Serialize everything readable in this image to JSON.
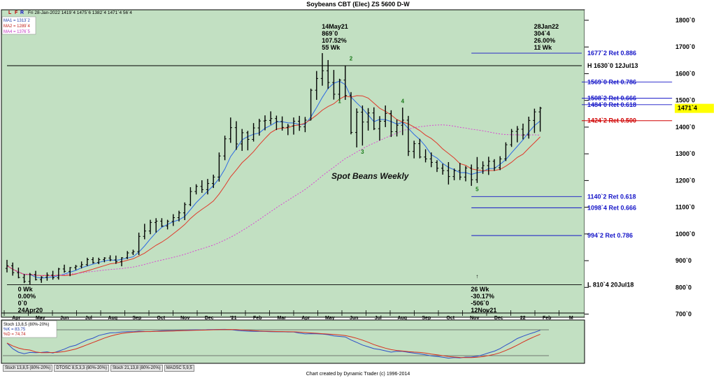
{
  "window": {
    "title": "Soybeans CBT (Elec) ZS 5600 D-W",
    "credit": "Chart created by Dynamic Trader  (c) 1996-2014"
  },
  "toolbar": {
    "flags": [
      "L",
      "F",
      "R"
    ],
    "ohlc_line": "Fri 28-Jan-2022   1419`4   1475`6   1382`4   1471`4   56`4"
  },
  "ma_legend": [
    "MA1 = 1313`2",
    "MA2 = 1289`4",
    "MA4 = 1376`5"
  ],
  "chart_data": {
    "type": "candlestick",
    "title": "Soybeans CBT (Elec) ZS 5600 D-W",
    "annotation_text": "Spot Beans Weekly",
    "y_ticks": [
      "1800`0",
      "1700`0",
      "1600`0",
      "1500`0",
      "1400`0",
      "1300`0",
      "1200`0",
      "1100`0",
      "1000`0",
      "900`0",
      "800`0",
      "700`0"
    ],
    "y_tick_values": [
      1800,
      1700,
      1600,
      1500,
      1400,
      1300,
      1200,
      1100,
      1000,
      900,
      800,
      700
    ],
    "ylim": [
      680,
      1830
    ],
    "x_labels": [
      "Apr",
      "May",
      "Jun",
      "Jul",
      "Aug",
      "Sep",
      "Oct",
      "Nov",
      "Dec",
      "'21",
      "Feb",
      "Mar",
      "Apr",
      "May",
      "Jun",
      "Jul",
      "Aug",
      "Sep",
      "Oct",
      "Nov",
      "Dec",
      "22",
      "Feb",
      "M"
    ],
    "last_price": "1471`4",
    "last_price_value": 1471.5,
    "levels": [
      {
        "label": "1677`2 Ret 0.886",
        "value": 1677,
        "color": "#1515c8",
        "start_week": 81
      },
      {
        "label": "H 1630`0 12Jul13",
        "value": 1630,
        "color": "#000000",
        "start_week": 0
      },
      {
        "label": "1569`0 Ret 0.786",
        "value": 1569,
        "color": "#1515c8",
        "start_week": 116
      },
      {
        "label": "1508`2 Ret 0.666",
        "value": 1508,
        "color": "#1515c8",
        "start_week": 116
      },
      {
        "label": "1484`0 Ret 0.618",
        "value": 1484,
        "color": "#1515c8",
        "start_week": 116
      },
      {
        "label": "1424`2 Ret 0.500",
        "value": 1424,
        "color": "#d00000",
        "start_week": 116
      },
      {
        "label": "1140`2 Ret 0.618",
        "value": 1140,
        "color": "#1515c8",
        "start_week": 81
      },
      {
        "label": "1098`4 Ret 0.666",
        "value": 1098,
        "color": "#1515c8",
        "start_week": 81
      },
      {
        "label": "994`2 Ret 0.786",
        "value": 994,
        "color": "#1515c8",
        "start_week": 81
      },
      {
        "label": "L 810`4 20Jul18",
        "value": 810,
        "color": "#000000",
        "start_week": 0
      }
    ],
    "callouts": [
      {
        "lines": [
          "14May21",
          "869`0",
          "107.52%",
          "55 Wk"
        ],
        "week": 56,
        "arrow": "down"
      },
      {
        "lines": [
          "28Jan22",
          "304`4",
          "26.00%",
          "11 Wk"
        ],
        "week": 93,
        "arrow": "down"
      },
      {
        "lines": [
          "0 Wk",
          "0.00%",
          "0`0",
          "24Apr20"
        ],
        "week": 3,
        "arrow": "up"
      },
      {
        "lines": [
          "26 Wk",
          "-30.17%",
          "-506`0",
          "12Nov21"
        ],
        "week": 82,
        "arrow": "up"
      }
    ],
    "wave_labels": [
      {
        "label": "1",
        "week": 58,
        "value": 1490
      },
      {
        "label": "2",
        "week": 60,
        "value": 1650
      },
      {
        "label": "3",
        "week": 62,
        "value": 1300
      },
      {
        "label": "4",
        "week": 69,
        "value": 1490
      },
      {
        "label": "5",
        "week": 82,
        "value": 1160
      }
    ],
    "weeks": 93,
    "ohlc": [
      [
        871,
        903,
        856,
        881
      ],
      [
        881,
        893,
        844,
        855
      ],
      [
        855,
        874,
        834,
        837
      ],
      [
        837,
        850,
        816,
        822
      ],
      [
        822,
        854,
        811,
        848
      ],
      [
        848,
        862,
        826,
        829
      ],
      [
        829,
        842,
        817,
        838
      ],
      [
        838,
        856,
        825,
        846
      ],
      [
        846,
        862,
        829,
        836
      ],
      [
        836,
        873,
        829,
        869
      ],
      [
        869,
        885,
        855,
        860
      ],
      [
        860,
        876,
        842,
        874
      ],
      [
        874,
        884,
        865,
        879
      ],
      [
        879,
        897,
        871,
        885
      ],
      [
        885,
        911,
        880,
        904
      ],
      [
        904,
        913,
        889,
        893
      ],
      [
        893,
        911,
        887,
        904
      ],
      [
        904,
        913,
        894,
        910
      ],
      [
        910,
        920,
        898,
        903
      ],
      [
        903,
        919,
        888,
        896
      ],
      [
        896,
        913,
        879,
        911
      ],
      [
        911,
        936,
        906,
        929
      ],
      [
        929,
        941,
        921,
        934
      ],
      [
        934,
        1005,
        921,
        991
      ],
      [
        991,
        1038,
        980,
        1011
      ],
      [
        1011,
        1053,
        999,
        1043
      ],
      [
        1043,
        1059,
        1005,
        1048
      ],
      [
        1048,
        1059,
        1026,
        1030
      ],
      [
        1030,
        1053,
        1017,
        1047
      ],
      [
        1047,
        1074,
        1030,
        1061
      ],
      [
        1061,
        1087,
        1047,
        1079
      ],
      [
        1079,
        1118,
        1052,
        1110
      ],
      [
        1110,
        1175,
        1104,
        1159
      ],
      [
        1159,
        1186,
        1148,
        1178
      ],
      [
        1178,
        1201,
        1154,
        1166
      ],
      [
        1166,
        1206,
        1148,
        1189
      ],
      [
        1189,
        1222,
        1172,
        1213
      ],
      [
        1213,
        1305,
        1196,
        1292
      ],
      [
        1292,
        1368,
        1276,
        1356
      ],
      [
        1356,
        1436,
        1341,
        1398
      ],
      [
        1398,
        1422,
        1315,
        1337
      ],
      [
        1337,
        1393,
        1311,
        1379
      ],
      [
        1379,
        1386,
        1313,
        1354
      ],
      [
        1354,
        1415,
        1346,
        1397
      ],
      [
        1397,
        1431,
        1368,
        1423
      ],
      [
        1423,
        1444,
        1388,
        1425
      ],
      [
        1425,
        1459,
        1409,
        1432
      ],
      [
        1432,
        1443,
        1389,
        1421
      ],
      [
        1421,
        1440,
        1387,
        1399
      ],
      [
        1399,
        1412,
        1370,
        1404
      ],
      [
        1404,
        1436,
        1372,
        1422
      ],
      [
        1422,
        1442,
        1386,
        1401
      ],
      [
        1401,
        1438,
        1381,
        1426
      ],
      [
        1426,
        1544,
        1425,
        1538
      ],
      [
        1538,
        1610,
        1502,
        1582
      ],
      [
        1582,
        1677,
        1555,
        1611
      ],
      [
        1611,
        1651,
        1543,
        1567
      ],
      [
        1567,
        1614,
        1503,
        1523
      ],
      [
        1523,
        1581,
        1497,
        1576
      ],
      [
        1576,
        1631,
        1502,
        1518
      ],
      [
        1518,
        1531,
        1373,
        1380
      ],
      [
        1380,
        1470,
        1324,
        1456
      ],
      [
        1456,
        1481,
        1331,
        1419
      ],
      [
        1419,
        1471,
        1387,
        1453
      ],
      [
        1453,
        1474,
        1389,
        1394
      ],
      [
        1394,
        1441,
        1350,
        1422
      ],
      [
        1422,
        1481,
        1400,
        1451
      ],
      [
        1451,
        1463,
        1363,
        1383
      ],
      [
        1383,
        1428,
        1365,
        1407
      ],
      [
        1407,
        1473,
        1370,
        1426
      ],
      [
        1426,
        1442,
        1292,
        1309
      ],
      [
        1309,
        1349,
        1283,
        1338
      ],
      [
        1338,
        1356,
        1283,
        1288
      ],
      [
        1288,
        1317,
        1268,
        1281
      ],
      [
        1281,
        1305,
        1250,
        1268
      ],
      [
        1268,
        1276,
        1232,
        1246
      ],
      [
        1246,
        1263,
        1222,
        1237
      ],
      [
        1237,
        1269,
        1185,
        1215
      ],
      [
        1215,
        1245,
        1201,
        1237
      ],
      [
        1237,
        1266,
        1202,
        1213
      ],
      [
        1213,
        1254,
        1197,
        1247
      ],
      [
        1247,
        1260,
        1180,
        1203
      ],
      [
        1203,
        1288,
        1191,
        1247
      ],
      [
        1247,
        1272,
        1225,
        1256
      ],
      [
        1256,
        1289,
        1221,
        1272
      ],
      [
        1272,
        1280,
        1236,
        1248
      ],
      [
        1248,
        1291,
        1239,
        1281
      ],
      [
        1281,
        1343,
        1273,
        1334
      ],
      [
        1334,
        1393,
        1326,
        1384
      ],
      [
        1384,
        1404,
        1343,
        1392
      ],
      [
        1392,
        1413,
        1354,
        1371
      ],
      [
        1371,
        1439,
        1357,
        1425
      ],
      [
        1425,
        1469,
        1378,
        1457
      ],
      [
        1457,
        1476,
        1383,
        1471
      ]
    ],
    "ma_series": [
      {
        "name": "MA1",
        "value": "1313`2",
        "color": "#2d6ae3"
      },
      {
        "name": "MA2",
        "value": "1289`4",
        "color": "#e0392a"
      },
      {
        "name": "MA4",
        "value": "1376`5",
        "color": "#d94ad1"
      }
    ],
    "oscillator": {
      "name": "Stoch 13,8,5 (80%-20%)",
      "legend": [
        "%K = 83.75",
        "%D = 74.74"
      ],
      "k_color": "#2d4fc9",
      "d_color": "#d83020",
      "k_value": 83.75,
      "d_value": 74.74
    }
  },
  "tabs": [
    "Stoch 13,8,5 (80%-20%)",
    "DTOSC 8,5,3,3 (80%-20%)",
    "Stoch 21,13,8 (80%-20%)",
    "MAOSC 5,9,5"
  ]
}
